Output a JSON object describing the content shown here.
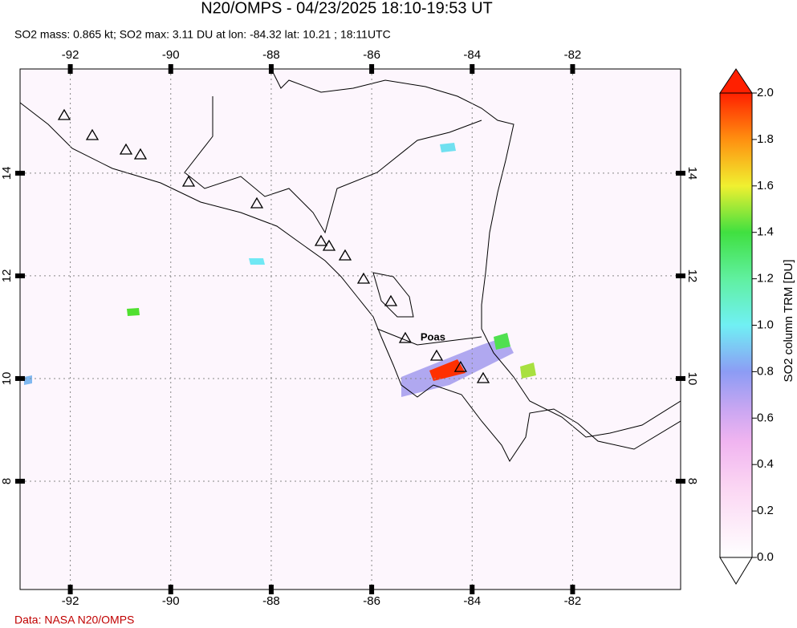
{
  "header": {
    "title": "N20/OMPS - 04/23/2025 18:10-19:53 UT",
    "subtitle": "SO2 mass: 0.865 kt; SO2 max: 3.11 DU at lon: -84.32 lat: 10.21 ; 18:11UTC"
  },
  "map": {
    "xlim": [
      -93.0,
      -79.85
    ],
    "ylim": [
      5.89,
      16.03
    ],
    "xticks": [
      -92,
      -90,
      -88,
      -86,
      -84,
      -82
    ],
    "yticks": [
      8,
      10,
      12,
      14
    ],
    "volcano": {
      "name": "Poas",
      "lon": -84.23,
      "lat": 10.2
    }
  },
  "colorbar": {
    "label": "SO2 column TRM [DU]",
    "range": [
      0,
      2
    ],
    "ticks": [
      {
        "value": 0,
        "label": "0.0"
      },
      {
        "value": 0.2,
        "label": "0.2"
      },
      {
        "value": 0.4,
        "label": "0.4"
      },
      {
        "value": 0.6,
        "label": "0.6"
      },
      {
        "value": 0.8,
        "label": "0.8"
      },
      {
        "value": 1,
        "label": "1.0"
      },
      {
        "value": 1.2,
        "label": "1.2"
      },
      {
        "value": 1.4,
        "label": "1.4"
      },
      {
        "value": 1.6,
        "label": "1.6"
      },
      {
        "value": 1.8,
        "label": "1.8"
      },
      {
        "value": 2,
        "label": "2.0"
      }
    ]
  },
  "footer": {
    "credit": "Data: NASA N20/OMPS"
  }
}
